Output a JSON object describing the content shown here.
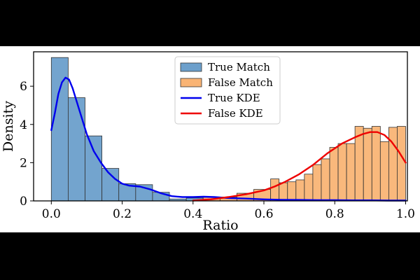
{
  "chart_data": {
    "type": "bar",
    "xlabel": "Ratio",
    "ylabel": "Density",
    "xlim": [
      -0.05,
      1.005
    ],
    "ylim": [
      0,
      7.8
    ],
    "xticks": [
      0.0,
      0.2,
      0.4,
      0.6,
      0.8,
      1.0
    ],
    "xtick_labels": [
      "0.0",
      "0.2",
      "0.4",
      "0.6",
      "0.8",
      "1.0"
    ],
    "yticks": [
      0,
      2,
      4,
      6
    ],
    "ytick_labels": [
      "0",
      "2",
      "4",
      "6"
    ],
    "bin_width": 0.0476,
    "legend_position": "top-center",
    "series": [
      {
        "name": "True Match",
        "kind": "histogram",
        "color": "#6c9fcb",
        "bin_edges": [
          0.0,
          0.0476,
          0.0952,
          0.1429,
          0.1905,
          0.2381,
          0.2857,
          0.3333,
          0.381,
          0.4286,
          0.4762,
          0.5238,
          0.5714,
          0.619,
          0.6667,
          0.7143,
          0.7619,
          0.8095,
          0.8571,
          0.9048,
          0.9524
        ],
        "values": [
          7.5,
          5.4,
          3.4,
          1.7,
          0.9,
          0.85,
          0.45,
          0.1,
          0.15,
          0.15,
          0.15,
          0.1,
          0.05,
          0.05,
          0.05,
          0.05,
          0.03,
          0.03,
          0.03,
          0.03,
          0.03
        ]
      },
      {
        "name": "False Match",
        "kind": "histogram",
        "color": "#f9b475",
        "bin_edges": [
          0.4286,
          0.4762,
          0.5238,
          0.5714,
          0.619,
          0.6429,
          0.6667,
          0.6905,
          0.7143,
          0.7381,
          0.7619,
          0.7857,
          0.8095,
          0.8333,
          0.8571,
          0.881,
          0.9048,
          0.9286,
          0.9524,
          0.9762
        ],
        "bin_widths": [
          0.0476,
          0.0476,
          0.0476,
          0.0476,
          0.0238,
          0.0238,
          0.0238,
          0.0238,
          0.0238,
          0.0238,
          0.0238,
          0.0238,
          0.0238,
          0.0238,
          0.0238,
          0.0238,
          0.0238,
          0.0238,
          0.0238,
          0.0238
        ],
        "values": [
          0.2,
          0.2,
          0.4,
          0.6,
          1.15,
          0.95,
          1.0,
          1.1,
          1.4,
          1.9,
          2.2,
          2.8,
          3.0,
          3.0,
          3.9,
          3.8,
          3.9,
          3.1,
          3.85,
          3.9
        ]
      },
      {
        "name": "True KDE",
        "kind": "line",
        "color": "#0000ee",
        "x": [
          0.0,
          0.01,
          0.02,
          0.03,
          0.04,
          0.05,
          0.06,
          0.08,
          0.1,
          0.12,
          0.14,
          0.16,
          0.18,
          0.2,
          0.22,
          0.25,
          0.28,
          0.31,
          0.34,
          0.37,
          0.4,
          0.43,
          0.46,
          0.5,
          0.55,
          0.6,
          0.65,
          0.7,
          0.75,
          0.8,
          0.85,
          0.9,
          0.95,
          1.0
        ],
        "y": [
          3.7,
          4.6,
          5.6,
          6.2,
          6.45,
          6.35,
          5.9,
          4.7,
          3.5,
          2.6,
          2.0,
          1.5,
          1.15,
          0.9,
          0.8,
          0.75,
          0.6,
          0.4,
          0.25,
          0.2,
          0.2,
          0.22,
          0.2,
          0.15,
          0.12,
          0.08,
          0.06,
          0.05,
          0.04,
          0.04,
          0.03,
          0.03,
          0.02,
          0.02
        ]
      },
      {
        "name": "False KDE",
        "kind": "line",
        "color": "#ee0000",
        "x": [
          0.4,
          0.45,
          0.5,
          0.55,
          0.6,
          0.63,
          0.66,
          0.7,
          0.74,
          0.78,
          0.82,
          0.86,
          0.88,
          0.9,
          0.92,
          0.94,
          0.96,
          0.98,
          1.0
        ],
        "y": [
          0.02,
          0.08,
          0.2,
          0.35,
          0.55,
          0.75,
          1.0,
          1.4,
          1.9,
          2.5,
          3.0,
          3.35,
          3.5,
          3.6,
          3.6,
          3.45,
          3.1,
          2.6,
          2.0
        ]
      }
    ],
    "legend": [
      {
        "label": "True Match",
        "marker": "patch",
        "color": "#6c9fcb"
      },
      {
        "label": "False Match",
        "marker": "patch",
        "color": "#f9b475"
      },
      {
        "label": "True KDE",
        "marker": "line",
        "color": "#0000ee"
      },
      {
        "label": "False KDE",
        "marker": "line",
        "color": "#ee0000"
      }
    ]
  }
}
